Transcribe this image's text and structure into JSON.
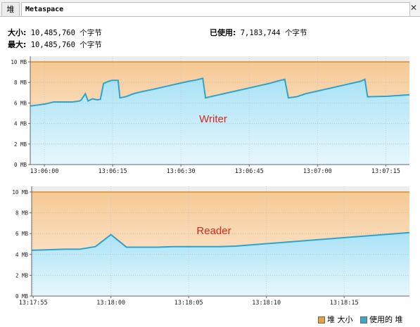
{
  "tabs": [
    {
      "label": "堆"
    },
    {
      "label": "Metaspace"
    }
  ],
  "close_glyph": "✕",
  "stats": {
    "size_label": "大小:",
    "size_value": "10,485,760 个字节",
    "max_label": "最大:",
    "max_value": "10,485,760 个字节",
    "used_label": "已使用:",
    "used_value": "7,183,744 个字节"
  },
  "legend": {
    "size_label": "堆 大小",
    "used_label": "使用的 堆",
    "size_color": "#e8a33d",
    "used_color": "#3aa7cc"
  },
  "chart_data": [
    {
      "type": "area",
      "annotation": "Writer",
      "ylim": [
        0,
        10
      ],
      "y_unit": "MB",
      "yticks": [
        "0 MB",
        "2 MB",
        "4 MB",
        "6 MB",
        "8 MB",
        "10 MB"
      ],
      "xticks": [
        "13:06:00",
        "13:06:15",
        "13:06:30",
        "13:06:45",
        "13:07:00",
        "13:07:15"
      ],
      "x_range_seconds": [
        -3.1,
        80.2
      ],
      "series": [
        {
          "name": "堆 大小",
          "x": [
            -3.1,
            80.2
          ],
          "y": [
            10,
            10
          ]
        },
        {
          "name": "使用的 堆",
          "x": [
            -3.1,
            -1.4,
            0.2,
            2.1,
            6.3,
            7.8,
            8.1,
            9.0,
            9.6,
            10.6,
            11.6,
            12.3,
            13.0,
            14.1,
            14.8,
            16.2,
            16.6,
            17.8,
            19.6,
            21.4,
            23.6,
            25.6,
            27.6,
            29.6,
            31.6,
            33.5,
            34.8,
            35.4,
            37.4,
            39.4,
            41.4,
            43.4,
            45.4,
            47.4,
            49.4,
            51.4,
            52.8,
            53.6,
            55.4,
            57.4,
            59.4,
            61.4,
            63.4,
            65.4,
            67.4,
            69.4,
            70.4,
            71.0,
            75.4,
            80.2
          ],
          "y": [
            5.7,
            5.8,
            5.9,
            6.1,
            6.1,
            6.2,
            6.3,
            6.9,
            6.2,
            6.4,
            6.3,
            6.35,
            7.9,
            8.1,
            8.2,
            8.2,
            6.5,
            6.6,
            6.9,
            7.1,
            7.3,
            7.5,
            7.7,
            7.9,
            8.1,
            8.25,
            8.4,
            6.5,
            6.7,
            6.9,
            7.1,
            7.3,
            7.5,
            7.7,
            7.9,
            8.15,
            8.3,
            6.5,
            6.6,
            6.9,
            7.1,
            7.3,
            7.5,
            7.7,
            7.9,
            8.1,
            8.3,
            6.6,
            6.65,
            6.8
          ]
        }
      ]
    },
    {
      "type": "area",
      "annotation": "Reader",
      "ylim": [
        0,
        10
      ],
      "y_unit": "MB",
      "yticks": [
        "0 MB",
        "2 MB",
        "4 MB",
        "6 MB",
        "8 MB",
        "10 MB"
      ],
      "xticks": [
        "13:17:55",
        "13:18:00",
        "13:18:05",
        "13:18:10",
        "13:18:15"
      ],
      "x_range_seconds": [
        -0.1,
        24.2
      ],
      "series": [
        {
          "name": "堆 大小",
          "x": [
            -0.1,
            24.2
          ],
          "y": [
            10,
            10
          ]
        },
        {
          "name": "使用的 堆",
          "x": [
            -0.1,
            1.0,
            2.0,
            3.0,
            4.0,
            5.0,
            6.0,
            7.0,
            8.0,
            9.0,
            10.0,
            11.0,
            12.0,
            13.0,
            24.2
          ],
          "y": [
            4.4,
            4.45,
            4.5,
            4.5,
            4.75,
            5.9,
            4.7,
            4.7,
            4.7,
            4.75,
            4.75,
            4.75,
            4.75,
            4.8,
            6.1
          ]
        }
      ]
    }
  ]
}
